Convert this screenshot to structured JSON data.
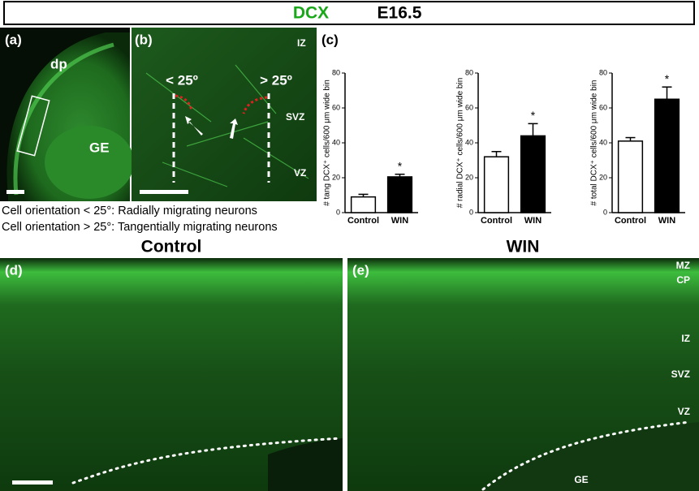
{
  "header": {
    "stain": "DCX",
    "stage": "E16.5"
  },
  "panel_a": {
    "label": "(a)",
    "regions": [
      "dp",
      "GE"
    ]
  },
  "panel_b": {
    "label": "(b)",
    "angles": [
      "< 25º",
      "> 25º"
    ],
    "zones": [
      "IZ",
      "SVZ",
      "VZ"
    ]
  },
  "legend": [
    "Cell orientation < 25°: Radially migrating neurons",
    "Cell orientation > 25°: Tangentially migrating neurons"
  ],
  "panel_c": {
    "label": "(c)"
  },
  "chart_data": [
    {
      "type": "bar",
      "ylabel": "# tang DCX⁺ cells/600 μm wide bin",
      "categories": [
        "Control",
        "WIN"
      ],
      "values": [
        9,
        20.5
      ],
      "errors": [
        1.5,
        1.5
      ],
      "colors": [
        "#ffffff",
        "#000000"
      ],
      "ylim": [
        0,
        80
      ],
      "yticks": [
        0,
        20,
        40,
        60,
        80
      ],
      "annotation": "*"
    },
    {
      "type": "bar",
      "ylabel": "# radial DCX⁺ cells/600 μm wide bin",
      "categories": [
        "Control",
        "WIN"
      ],
      "values": [
        32,
        44
      ],
      "errors": [
        3,
        7
      ],
      "colors": [
        "#ffffff",
        "#000000"
      ],
      "ylim": [
        0,
        80
      ],
      "yticks": [
        0,
        20,
        40,
        60,
        80
      ],
      "annotation": "*"
    },
    {
      "type": "bar",
      "ylabel": "# total DCX⁺ cells/600 μm wide bin",
      "categories": [
        "Control",
        "WIN"
      ],
      "values": [
        41,
        65
      ],
      "errors": [
        2,
        7
      ],
      "colors": [
        "#ffffff",
        "#000000"
      ],
      "ylim": [
        0,
        80
      ],
      "yticks": [
        0,
        20,
        40,
        60,
        80
      ],
      "annotation": "*"
    }
  ],
  "panel_d": {
    "label": "(d)",
    "title": "Control"
  },
  "panel_e": {
    "label": "(e)",
    "title": "WIN",
    "zones": [
      "MZ",
      "CP",
      "IZ",
      "SVZ",
      "VZ",
      "GE"
    ]
  }
}
